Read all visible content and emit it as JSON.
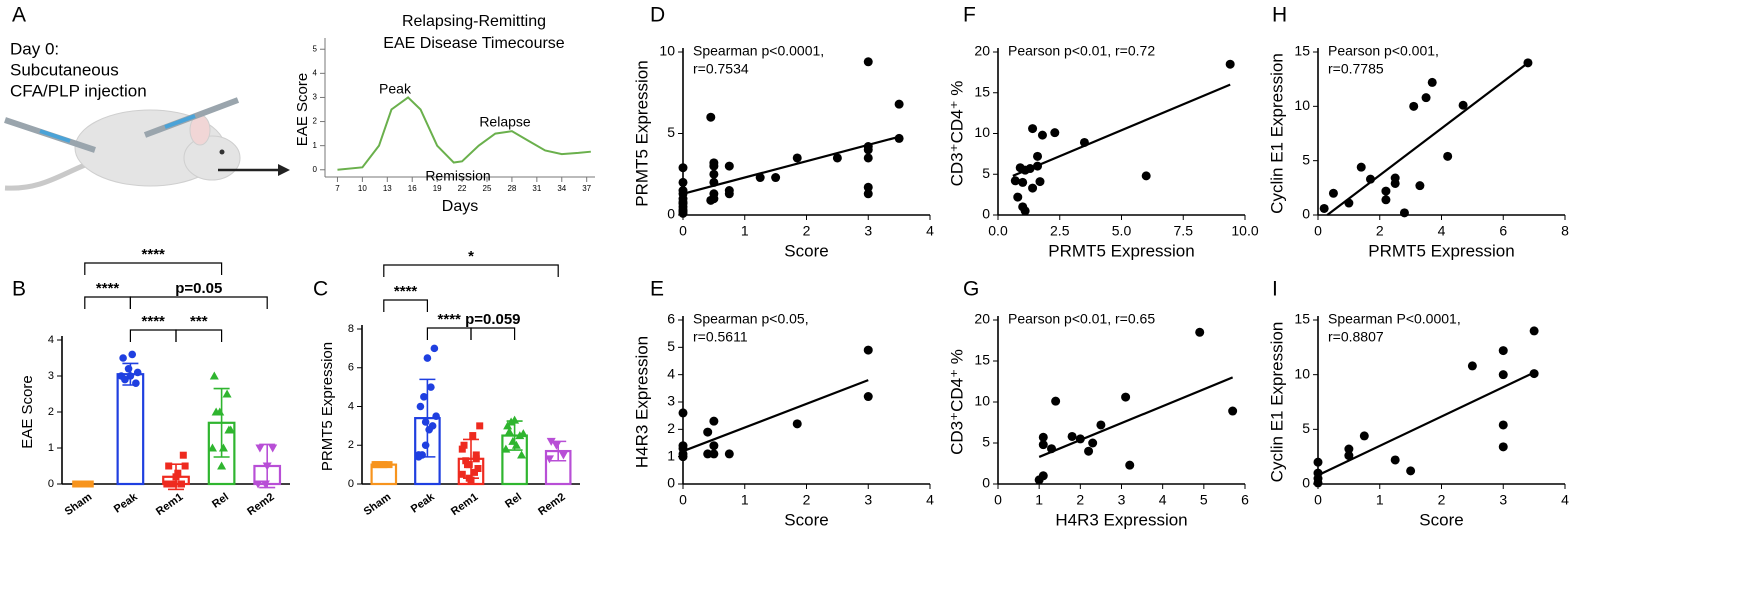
{
  "chart_data": [
    {
      "type": "line",
      "panel": "A",
      "intro": [
        "Day 0:",
        "Subcutaneous",
        "CFA/PLP injection"
      ],
      "title": [
        "Relapsing-Remitting",
        "EAE Disease Timecourse"
      ],
      "xlabel": "Days",
      "ylabel": "EAE Score",
      "annotations": [
        "Peak",
        "Relapse",
        "Remission"
      ],
      "color": "#6ab04c",
      "x": [
        7,
        10,
        12,
        13.5,
        15.5,
        17,
        19,
        21,
        22,
        24,
        26,
        28,
        30,
        32,
        34,
        36,
        37.5
      ],
      "y": [
        0,
        0.1,
        1,
        2.5,
        3,
        2.5,
        1,
        0.3,
        0.35,
        1,
        1.5,
        1.6,
        1.2,
        0.8,
        0.65,
        0.7,
        0.75
      ],
      "xlim": [
        5.5,
        38
      ],
      "xticks": [
        7,
        10,
        13,
        16,
        19,
        22,
        25,
        28,
        31,
        34,
        37
      ],
      "ylim": [
        -0.3,
        5.3
      ],
      "yticks": [
        0,
        1,
        2,
        3,
        4,
        5
      ]
    },
    {
      "type": "bar",
      "panel": "B",
      "ylabel": "EAE Score",
      "categories": [
        "Sham",
        "Peak",
        "Rem1",
        "Rel",
        "Rem2"
      ],
      "values": [
        0,
        3.05,
        0.2,
        1.7,
        0.5
      ],
      "errors": [
        0,
        0.3,
        0.35,
        0.95,
        0.6
      ],
      "colors": [
        "#f7941d",
        "#1f3fe0",
        "#ee2a1f",
        "#2fb52f",
        "#b84fd6"
      ],
      "markers": [
        "square",
        "circle",
        "square",
        "triangle",
        "triangle-down"
      ],
      "points": [
        [
          0,
          0,
          0,
          0,
          0
        ],
        [
          3,
          3.2,
          2.8,
          3.5,
          3,
          3.1,
          2.9,
          3.6
        ],
        [
          0,
          0,
          0,
          0.5,
          0.2,
          0.8,
          0,
          0.3,
          0.5,
          0
        ],
        [
          1,
          2,
          2.5,
          3,
          0.5,
          1.5,
          2,
          1,
          1.5
        ],
        [
          0,
          0,
          1,
          1,
          0.5
        ]
      ],
      "annotations": [
        "****",
        "****",
        "p=0.05",
        "****",
        "***"
      ],
      "ylim": [
        0,
        4
      ],
      "yticks": [
        0,
        1,
        2,
        3,
        4
      ]
    },
    {
      "type": "bar",
      "panel": "C",
      "ylabel": "PRMT5 Expression",
      "categories": [
        "Sham",
        "Peak",
        "Rem1",
        "Rel",
        "Rem2"
      ],
      "values": [
        1,
        3.4,
        1.3,
        2.5,
        1.7
      ],
      "errors": [
        0,
        2,
        1,
        0.75,
        0.5
      ],
      "colors": [
        "#f7941d",
        "#1f3fe0",
        "#ee2a1f",
        "#2fb52f",
        "#b84fd6"
      ],
      "markers": [
        "square",
        "circle",
        "square",
        "triangle",
        "triangle-down"
      ],
      "points": [
        [
          1,
          1,
          1,
          1,
          1
        ],
        [
          1.5,
          2,
          3,
          4,
          6.5,
          7,
          1.5,
          2.8,
          3.5,
          4.5,
          5,
          1.4,
          3.2
        ],
        [
          0.5,
          1,
          1.5,
          2,
          0.2,
          0.8,
          1.2,
          2.5,
          3,
          1,
          0.6,
          1.8,
          0.3,
          1.3
        ],
        [
          1.8,
          2.2,
          2.5,
          3,
          3.3,
          1.5,
          2.7,
          2,
          2.6,
          3.2
        ],
        [
          1.3,
          2,
          1.5,
          2.2
        ]
      ],
      "annotations": [
        "****",
        "*",
        "****",
        "p=0.059"
      ],
      "ylim": [
        0,
        8
      ],
      "yticks": [
        0,
        2,
        4,
        6,
        8
      ]
    },
    {
      "type": "scatter",
      "panel": "D",
      "xlabel": "Score",
      "ylabel": "PRMT5 Expression",
      "annotation": [
        "Spearman p<0.0001,",
        "r=0.7534"
      ],
      "x": [
        0,
        0,
        0,
        0,
        0,
        0,
        0,
        0,
        0,
        0,
        0,
        0.5,
        0.5,
        0.5,
        0.5,
        0.5,
        0.5,
        0.45,
        0.45,
        0.75,
        0.75,
        0.75,
        1.25,
        1.5,
        1.85,
        2.5,
        3,
        3,
        3,
        3,
        3,
        3,
        3.5,
        3.5
      ],
      "y": [
        0.1,
        0.3,
        0.5,
        0.7,
        1,
        1.3,
        1.5,
        2,
        2.9,
        0.2,
        0.8,
        1,
        1.3,
        2,
        2.5,
        3,
        3.2,
        6,
        0.9,
        1.3,
        1.5,
        3,
        2.3,
        2.3,
        3.5,
        3.5,
        1.3,
        1.7,
        3.5,
        4,
        4.2,
        9.4,
        4.7,
        6.8
      ],
      "fit": {
        "x": [
          0,
          3.5
        ],
        "y": [
          1.3,
          4.8
        ]
      },
      "xlim": [
        0,
        4
      ],
      "xticks": [
        0,
        1,
        2,
        3,
        4
      ],
      "ylim": [
        0,
        10
      ],
      "yticks": [
        0,
        5,
        10
      ]
    },
    {
      "type": "scatter",
      "panel": "E",
      "xlabel": "Score",
      "ylabel": "H4R3 Expression",
      "annotation": [
        "Spearman p<0.05,",
        "r=0.5611"
      ],
      "x": [
        0,
        0,
        0,
        0,
        0,
        0.4,
        0.4,
        0.5,
        0.5,
        0.5,
        0.75,
        1.85,
        3,
        3
      ],
      "y": [
        1,
        1.1,
        1.3,
        1.4,
        2.6,
        1.1,
        1.9,
        1.1,
        1.4,
        2.3,
        1.1,
        2.2,
        3.2,
        4.9
      ],
      "fit": {
        "x": [
          0,
          3
        ],
        "y": [
          1.2,
          3.8
        ]
      },
      "xlim": [
        0,
        4
      ],
      "xticks": [
        0,
        1,
        2,
        3,
        4
      ],
      "ylim": [
        0,
        6
      ],
      "yticks": [
        0,
        1,
        2,
        3,
        4,
        5,
        6
      ]
    },
    {
      "type": "scatter",
      "panel": "F",
      "xlabel": "PRMT5 Expression",
      "ylabel": "CD3⁺CD4⁺ %",
      "annotation": [
        "Pearson p<0.01, r=0.72"
      ],
      "x": [
        0.7,
        0.8,
        0.9,
        1,
        1.1,
        1,
        1.1,
        1.3,
        1.4,
        1.4,
        1.6,
        1.7,
        1.6,
        1.8,
        2.3,
        3.5,
        6,
        9.4
      ],
      "y": [
        4.2,
        2.2,
        5.8,
        1,
        0.5,
        4,
        5.5,
        5.7,
        10.6,
        3.3,
        7.2,
        4.1,
        6,
        9.8,
        10.1,
        8.9,
        4.8,
        18.5
      ],
      "fit": {
        "x": [
          0.6,
          9.4
        ],
        "y": [
          4.8,
          16
        ]
      },
      "xlim": [
        0,
        10
      ],
      "xticks": [
        {
          "value": 0,
          "label": "0.0"
        },
        {
          "value": 2.5,
          "label": "2.5"
        },
        {
          "value": 5,
          "label": "5.0"
        },
        {
          "value": 7.5,
          "label": "7.5"
        },
        {
          "value": 10,
          "label": "10.0"
        }
      ],
      "ylim": [
        0,
        20
      ],
      "yticks": [
        0,
        5,
        10,
        15,
        20
      ]
    },
    {
      "type": "scatter",
      "panel": "G",
      "xlabel": "H4R3 Expression",
      "ylabel": "CD3⁺CD4⁺ %",
      "annotation": [
        "Pearson p<0.01, r=0.65"
      ],
      "x": [
        1,
        1.1,
        1.1,
        1.1,
        1.3,
        1.4,
        1.8,
        2,
        2.2,
        2.5,
        2.3,
        3.1,
        3.2,
        4.9,
        5.7
      ],
      "y": [
        0.5,
        1,
        5.7,
        4.8,
        4.3,
        10.1,
        5.8,
        5.5,
        4,
        7.2,
        5,
        10.6,
        2.3,
        18.5,
        8.9
      ],
      "fit": {
        "x": [
          1,
          5.7
        ],
        "y": [
          3.3,
          13
        ]
      },
      "xlim": [
        0,
        6
      ],
      "xticks": [
        0,
        1,
        2,
        3,
        4,
        5,
        6
      ],
      "ylim": [
        0,
        20
      ],
      "yticks": [
        0,
        5,
        10,
        15,
        20
      ]
    },
    {
      "type": "scatter",
      "panel": "H",
      "xlabel": "PRMT5 Expression",
      "ylabel": "Cyclin E1 Expression",
      "annotation": [
        "Pearson p<0.001,",
        "r=0.7785"
      ],
      "x": [
        0.2,
        0.5,
        1,
        1.4,
        1.7,
        2.2,
        2.2,
        2.5,
        2.5,
        2.8,
        3.1,
        3.3,
        3.5,
        3.7,
        4.2,
        4.7,
        6.8
      ],
      "y": [
        0.6,
        2,
        1.1,
        4.4,
        3.3,
        1.4,
        2.2,
        2.9,
        3.4,
        0.2,
        10,
        2.7,
        10.8,
        12.2,
        5.4,
        10.1,
        14
      ],
      "fit": {
        "x": [
          0.3,
          6.8
        ],
        "y": [
          0,
          14
        ]
      },
      "xlim": [
        0,
        8
      ],
      "xticks": [
        0,
        2,
        4,
        6,
        8
      ],
      "ylim": [
        0,
        15
      ],
      "yticks": [
        0,
        5,
        10,
        15
      ]
    },
    {
      "type": "scatter",
      "panel": "I",
      "xlabel": "Score",
      "ylabel": "Cyclin E1 Expression",
      "annotation": [
        "Spearman P<0.0001,",
        "r=0.8807"
      ],
      "x": [
        0,
        0,
        0,
        0,
        0.5,
        0.5,
        0.75,
        1.25,
        1.5,
        2.5,
        3,
        3,
        3,
        3,
        3.5,
        3.5
      ],
      "y": [
        0.1,
        0.5,
        1,
        2,
        2.6,
        3.2,
        4.4,
        2.2,
        1.2,
        10.8,
        3.4,
        5.4,
        10,
        12.2,
        10.1,
        14
      ],
      "fit": {
        "x": [
          0,
          3.5
        ],
        "y": [
          0.8,
          10.2
        ]
      },
      "xlim": [
        0,
        4
      ],
      "xticks": [
        0,
        1,
        2,
        3,
        4
      ],
      "ylim": [
        0,
        15
      ],
      "yticks": [
        0,
        5,
        10,
        15
      ]
    }
  ]
}
